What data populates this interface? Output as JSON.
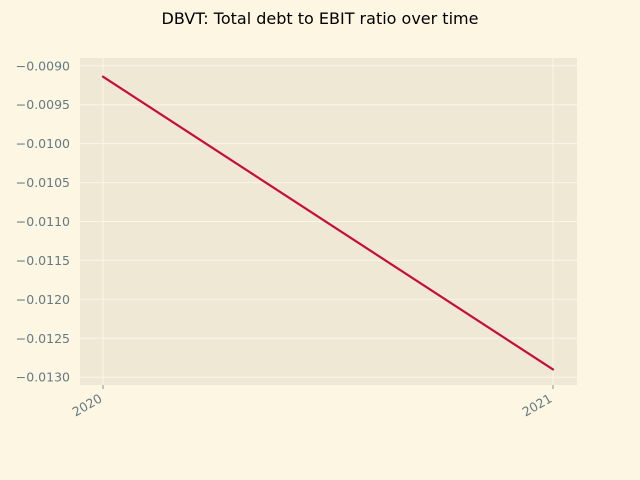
{
  "colors": {
    "page_background": "#fdf6e3",
    "plot_background": "#eee8d5",
    "grid": "#fdf6e3",
    "tick_label": "#657b83",
    "line": "#c70d3a"
  },
  "chart_data": {
    "type": "line",
    "title": "DBVT: Total debt to EBIT ratio over time",
    "xlabel": "",
    "ylabel": "",
    "x": [
      "2020",
      "2021"
    ],
    "series": [
      {
        "values": [
          -0.00914,
          -0.0129
        ]
      }
    ],
    "ylim": [
      -0.0131,
      -0.0089
    ],
    "yticks": [
      -0.009,
      -0.0095,
      -0.01,
      -0.0105,
      -0.011,
      -0.0115,
      -0.012,
      -0.0125,
      -0.013
    ],
    "ytick_labels": [
      "−0.0090",
      "−0.0095",
      "−0.0100",
      "−0.0105",
      "−0.0110",
      "−0.0115",
      "−0.0120",
      "−0.0125",
      "−0.0130"
    ],
    "xtick_labels": [
      "2020",
      "2021"
    ],
    "grid": true,
    "legend": "none"
  }
}
